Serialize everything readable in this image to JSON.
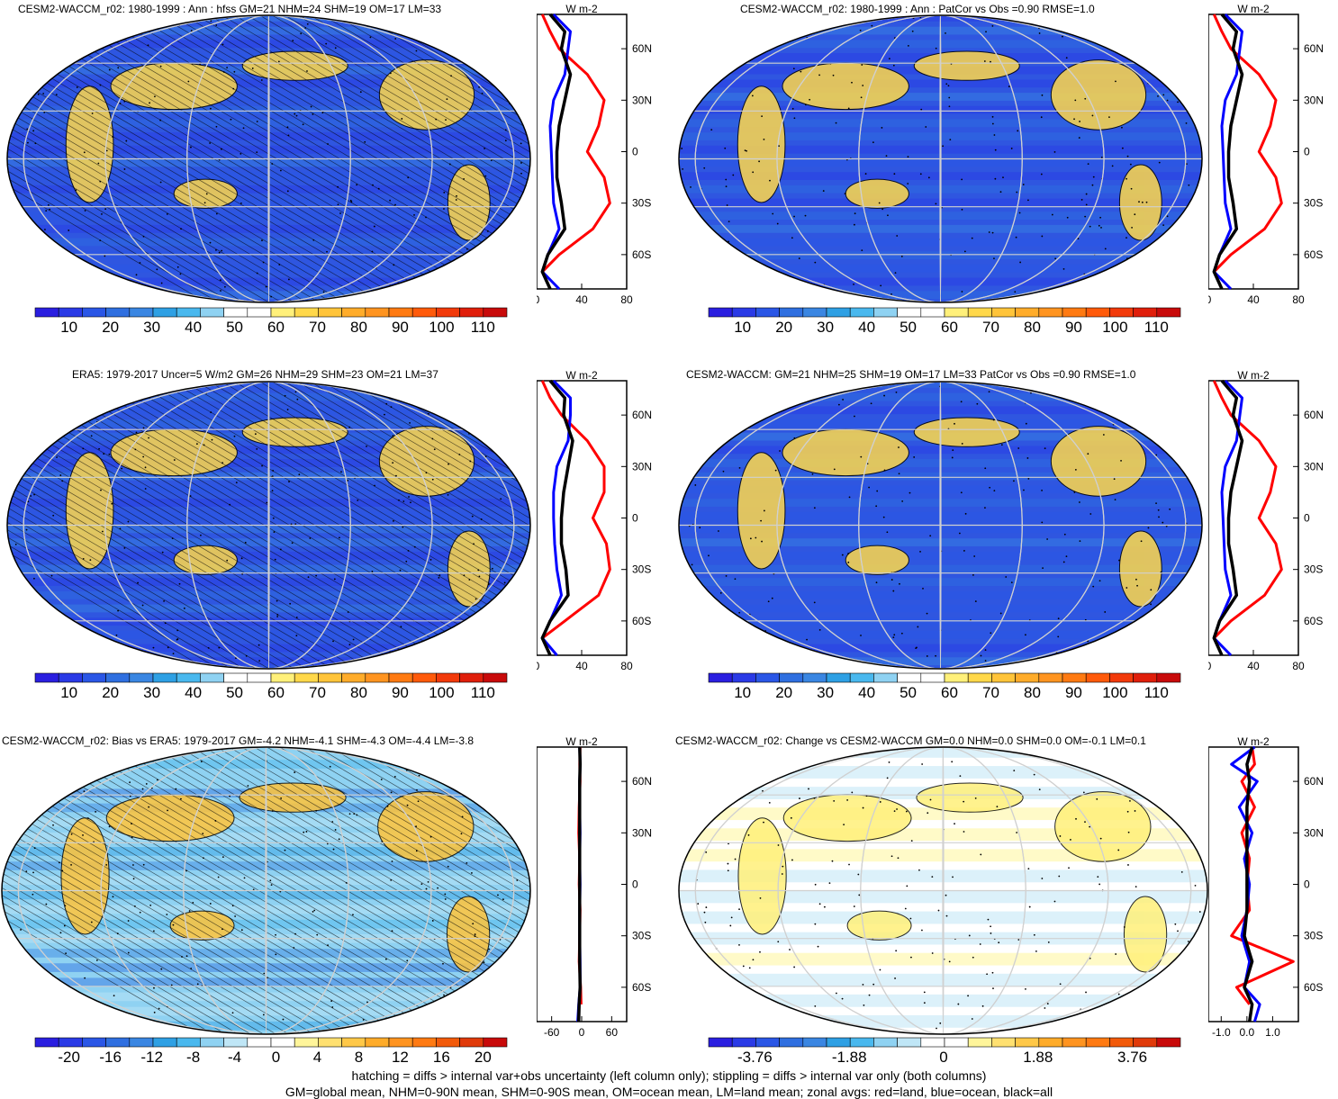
{
  "panels": [
    {
      "id": "top-left",
      "title": "CESM2-WACCM_r02: 1980-1999 : Ann : hfss GM=21 NHM=24 SHM=19 OM=17 LM=33",
      "colorbar": {
        "labels": [
          "10",
          "20",
          "30",
          "40",
          "50",
          "60",
          "70",
          "80",
          "90",
          "100",
          "110"
        ]
      },
      "zonal": {
        "units": "W m-2",
        "xticks": [
          "0",
          "40",
          "80"
        ],
        "xlim": [
          0,
          80
        ],
        "yticks": [
          "60N",
          "30N",
          "0",
          "30S",
          "60S"
        ],
        "ylim": [
          -80,
          80
        ]
      }
    },
    {
      "id": "top-right",
      "title": "CESM2-WACCM_r02: 1980-1999 : Ann : PatCor vs Obs =0.90 RMSE=1.0",
      "colorbar": {
        "labels": [
          "10",
          "20",
          "30",
          "40",
          "50",
          "60",
          "70",
          "80",
          "90",
          "100",
          "110"
        ]
      },
      "zonal": {
        "units": "W m-2",
        "xticks": [
          "0",
          "40",
          "80"
        ],
        "xlim": [
          0,
          80
        ],
        "yticks": [
          "60N",
          "30N",
          "0",
          "30S",
          "60S"
        ],
        "ylim": [
          -80,
          80
        ]
      }
    },
    {
      "id": "middle-left",
      "title": "ERA5: 1979-2017 Uncer=5 W/m2 GM=26 NHM=29 SHM=23 OM=21 LM=37",
      "colorbar": {
        "labels": [
          "10",
          "20",
          "30",
          "40",
          "50",
          "60",
          "70",
          "80",
          "90",
          "100",
          "110"
        ]
      },
      "zonal": {
        "units": "W m-2",
        "xticks": [
          "0",
          "40",
          "80"
        ],
        "xlim": [
          0,
          80
        ],
        "yticks": [
          "60N",
          "30N",
          "0",
          "30S",
          "60S"
        ],
        "ylim": [
          -80,
          80
        ]
      }
    },
    {
      "id": "middle-right",
      "title": "CESM2-WACCM: GM=21 NHM=25 SHM=19 OM=17 LM=33 PatCor vs Obs =0.90 RMSE=1.0",
      "colorbar": {
        "labels": [
          "10",
          "20",
          "30",
          "40",
          "50",
          "60",
          "70",
          "80",
          "90",
          "100",
          "110"
        ]
      },
      "zonal": {
        "units": "W m-2",
        "xticks": [
          "0",
          "40",
          "80"
        ],
        "xlim": [
          0,
          80
        ],
        "yticks": [
          "60N",
          "30N",
          "0",
          "30S",
          "60S"
        ],
        "ylim": [
          -80,
          80
        ]
      }
    },
    {
      "id": "bottom-left",
      "title": "CESM2-WACCM_r02: Bias vs ERA5: 1979-2017 GM=-4.2 NHM=-4.1 SHM=-4.3 OM=-4.4 LM=-3.8",
      "colorbar": {
        "labels": [
          "-20",
          "-16",
          "-12",
          "-8",
          "-4",
          "0",
          "4",
          "8",
          "12",
          "16",
          "20"
        ]
      },
      "zonal": {
        "units": "W m-2",
        "xticks": [
          "-60",
          "0",
          "60"
        ],
        "xlim": [
          -90,
          90
        ],
        "yticks": [
          "60N",
          "30N",
          "0",
          "30S",
          "60S"
        ],
        "ylim": [
          -80,
          80
        ]
      }
    },
    {
      "id": "bottom-right",
      "title": "CESM2-WACCM_r02: Change vs CESM2-WACCM GM=0.0 NHM=0.0 SHM=0.0 OM=-0.1 LM=0.1",
      "colorbar": {
        "labels": [
          "-3.76",
          "-1.88",
          "0",
          "1.88",
          "3.76"
        ]
      },
      "zonal": {
        "units": "W m-2",
        "xticks": [
          "-1.0",
          "0.0",
          "1.0"
        ],
        "xlim": [
          -1.5,
          2.0
        ],
        "yticks": [
          "60N",
          "30N",
          "0",
          "30S",
          "60S"
        ],
        "ylim": [
          -80,
          80
        ]
      }
    }
  ],
  "footer": {
    "line1": "hatching = diffs > internal var+obs uncertainty (left column only); stippling = diffs > internal var only (both columns)",
    "line2": "GM=global mean, NHM=0-90N mean, SHM=0-90S mean, OM=ocean mean, LM=land mean; zonal avgs: red=land, blue=ocean, black=all"
  },
  "colors": {
    "abs_scale": [
      "#2a1ee0",
      "#2a3ae6",
      "#2a56e6",
      "#2f6fe0",
      "#3a86e2",
      "#2ea0e4",
      "#49b8ee",
      "#8fd2f2",
      "#ffffff",
      "#ffffff",
      "#fff07a",
      "#ffd84a",
      "#ffc43a",
      "#ffac2a",
      "#ff9420",
      "#ff7a12",
      "#ff5a0a",
      "#f23a0a",
      "#e01e0a",
      "#c80a0a"
    ],
    "diff_scale": [
      "#2a1ee0",
      "#2a3ae6",
      "#2a56e6",
      "#2f6fe0",
      "#3a86e2",
      "#2ea0e4",
      "#49b8ee",
      "#8fd2f2",
      "#bfe6f6",
      "#ffffff",
      "#ffffff",
      "#fff59a",
      "#ffe070",
      "#ffc848",
      "#ffac2a",
      "#ff9420",
      "#ff7a12",
      "#f25a0a",
      "#e03a0a",
      "#c80a0a"
    ],
    "ocean_line": "#0000ff",
    "land_line": "#ff0000",
    "all_line": "#000000"
  },
  "chart_data": [
    {
      "type": "heatmap",
      "panel": "top-left",
      "title": "CESM2-WACCM_r02: 1980-1999 : Ann : hfss GM=21 NHM=24 SHM=19 OM=17 LM=33",
      "colorbar_ticks": [
        10,
        20,
        30,
        40,
        50,
        60,
        70,
        80,
        90,
        100,
        110
      ],
      "zonal_mean": {
        "lat": [
          80,
          70,
          60,
          45,
          30,
          15,
          0,
          -15,
          -30,
          -45,
          -60,
          -70,
          -80
        ],
        "land": [
          5,
          12,
          20,
          45,
          60,
          55,
          45,
          60,
          65,
          50,
          20,
          5,
          null
        ],
        "ocean": [
          15,
          30,
          28,
          25,
          15,
          12,
          13,
          14,
          15,
          20,
          10,
          5,
          20
        ],
        "all": [
          12,
          25,
          22,
          30,
          25,
          20,
          18,
          18,
          22,
          25,
          10,
          5,
          12
        ]
      }
    },
    {
      "type": "heatmap",
      "panel": "top-right",
      "title": "CESM2-WACCM_r02: 1980-1999 : Ann : PatCor vs Obs =0.90 RMSE=1.0",
      "colorbar_ticks": [
        10,
        20,
        30,
        40,
        50,
        60,
        70,
        80,
        90,
        100,
        110
      ],
      "zonal_mean": {
        "lat": [
          80,
          70,
          60,
          45,
          30,
          15,
          0,
          -15,
          -30,
          -45,
          -60,
          -70,
          -80
        ],
        "land": [
          5,
          12,
          20,
          45,
          60,
          55,
          45,
          60,
          65,
          50,
          20,
          5,
          null
        ],
        "ocean": [
          15,
          30,
          28,
          25,
          15,
          12,
          13,
          14,
          15,
          20,
          10,
          5,
          20
        ],
        "all": [
          12,
          25,
          22,
          30,
          25,
          20,
          18,
          18,
          22,
          25,
          10,
          5,
          12
        ]
      }
    },
    {
      "type": "heatmap",
      "panel": "middle-left",
      "title": "ERA5: 1979-2017 Uncer=5 W/m2 GM=26 NHM=29 SHM=23 OM=21 LM=37",
      "colorbar_ticks": [
        10,
        20,
        30,
        40,
        50,
        60,
        70,
        80,
        90,
        100,
        110
      ],
      "zonal_mean": {
        "lat": [
          80,
          70,
          60,
          45,
          30,
          15,
          0,
          -15,
          -30,
          -45,
          -60,
          -70,
          -80
        ],
        "land": [
          5,
          12,
          22,
          45,
          60,
          60,
          50,
          62,
          65,
          55,
          25,
          5,
          null
        ],
        "ocean": [
          15,
          30,
          30,
          28,
          18,
          15,
          15,
          16,
          18,
          22,
          12,
          5,
          18
        ],
        "all": [
          12,
          25,
          24,
          32,
          28,
          24,
          22,
          22,
          26,
          28,
          12,
          5,
          12
        ]
      }
    },
    {
      "type": "heatmap",
      "panel": "middle-right",
      "title": "CESM2-WACCM: GM=21 NHM=25 SHM=19 OM=17 LM=33 PatCor vs Obs =0.90 RMSE=1.0",
      "colorbar_ticks": [
        10,
        20,
        30,
        40,
        50,
        60,
        70,
        80,
        90,
        100,
        110
      ],
      "zonal_mean": {
        "lat": [
          80,
          70,
          60,
          45,
          30,
          15,
          0,
          -15,
          -30,
          -45,
          -60,
          -70,
          -80
        ],
        "land": [
          5,
          12,
          20,
          45,
          60,
          55,
          45,
          60,
          65,
          50,
          20,
          5,
          null
        ],
        "ocean": [
          15,
          30,
          28,
          25,
          15,
          12,
          13,
          14,
          15,
          20,
          10,
          5,
          20
        ],
        "all": [
          12,
          25,
          22,
          30,
          25,
          20,
          18,
          18,
          22,
          25,
          10,
          5,
          12
        ]
      }
    },
    {
      "type": "heatmap",
      "panel": "bottom-left",
      "title": "CESM2-WACCM_r02: Bias vs ERA5: 1979-2017 GM=-4.2 NHM=-4.1 SHM=-4.3 OM=-4.4 LM=-3.8",
      "colorbar_ticks": [
        -20,
        -16,
        -12,
        -8,
        -4,
        0,
        4,
        8,
        12,
        16,
        20
      ],
      "zonal_mean": {
        "lat": [
          80,
          70,
          60,
          45,
          30,
          15,
          0,
          -15,
          -30,
          -45,
          -60,
          -70,
          -80
        ],
        "land": [
          -3,
          -4,
          -3,
          -5,
          -6,
          -4,
          -5,
          -3,
          -4,
          -5,
          -2,
          -1,
          null
        ],
        "ocean": [
          -4,
          -3,
          -4,
          -4,
          -3,
          -4,
          -3,
          -4,
          -4,
          -3,
          -3,
          -6,
          -8
        ],
        "all": [
          -4,
          -3,
          -4,
          -4,
          -4,
          -4,
          -4,
          -4,
          -4,
          -4,
          -3,
          -5,
          -6
        ]
      }
    },
    {
      "type": "heatmap",
      "panel": "bottom-right",
      "title": "CESM2-WACCM_r02: Change vs CESM2-WACCM GM=0.0 NHM=0.0 SHM=0.0 OM=-0.1 LM=0.1",
      "colorbar_ticks": [
        -3.76,
        -1.88,
        0,
        1.88,
        3.76
      ],
      "zonal_mean": {
        "lat": [
          80,
          70,
          60,
          45,
          30,
          15,
          0,
          -15,
          -30,
          -45,
          -60,
          -70,
          -80
        ],
        "land": [
          0.2,
          0.3,
          -0.2,
          0.3,
          -0.2,
          0.1,
          0.0,
          0.1,
          -0.6,
          1.8,
          -0.4,
          0.1,
          null
        ],
        "ocean": [
          0.3,
          -0.6,
          0.4,
          -0.3,
          0.2,
          -0.1,
          0.1,
          0.0,
          -0.2,
          0.1,
          -0.1,
          0.5,
          0.3
        ],
        "all": [
          0.2,
          0.0,
          0.1,
          0.0,
          0.0,
          0.0,
          0.0,
          0.0,
          -0.1,
          0.2,
          -0.1,
          0.2,
          0.1
        ]
      }
    }
  ]
}
